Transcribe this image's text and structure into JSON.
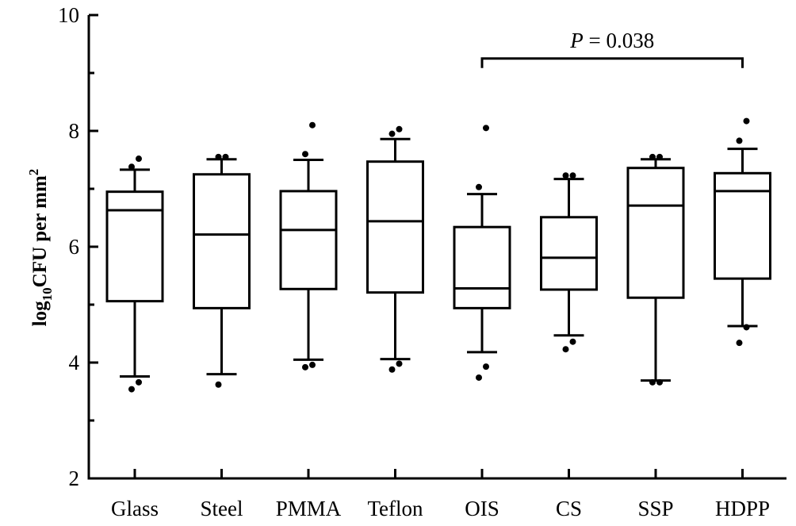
{
  "chart_data": {
    "type": "box",
    "ylabel": {
      "base": "log",
      "sub": "10",
      "main": "CFU per mm",
      "sup": "2"
    },
    "ylim": [
      2,
      10
    ],
    "yticks": [
      "2",
      "4",
      "6",
      "8",
      "10"
    ],
    "grid": false,
    "categories": [
      "Glass",
      "Steel",
      "PMMA",
      "Teflon",
      "OIS",
      "CS",
      "SSP",
      "HDPP"
    ],
    "boxes": [
      {
        "category": "Glass",
        "whisker_low": 3.76,
        "q1": 5.06,
        "median": 6.63,
        "q3": 6.95,
        "whisker_high": 7.33,
        "outliers": [
          3.54,
          3.66,
          7.38,
          7.52
        ]
      },
      {
        "category": "Steel",
        "whisker_low": 3.8,
        "q1": 4.94,
        "median": 6.21,
        "q3": 7.25,
        "whisker_high": 7.51,
        "outliers": [
          3.62,
          7.55,
          7.55
        ]
      },
      {
        "category": "PMMA",
        "whisker_low": 4.05,
        "q1": 5.27,
        "median": 6.29,
        "q3": 6.96,
        "whisker_high": 7.5,
        "outliers": [
          3.92,
          3.96,
          7.6,
          8.1
        ]
      },
      {
        "category": "Teflon",
        "whisker_low": 4.06,
        "q1": 5.21,
        "median": 6.44,
        "q3": 7.47,
        "whisker_high": 7.86,
        "outliers": [
          3.88,
          3.98,
          7.95,
          8.03
        ]
      },
      {
        "category": "OIS",
        "whisker_low": 4.18,
        "q1": 4.94,
        "median": 5.28,
        "q3": 6.34,
        "whisker_high": 6.91,
        "outliers": [
          3.74,
          3.93,
          7.03,
          8.05
        ]
      },
      {
        "category": "CS",
        "whisker_low": 4.47,
        "q1": 5.26,
        "median": 5.81,
        "q3": 6.51,
        "whisker_high": 7.17,
        "outliers": [
          4.23,
          4.36,
          7.23,
          7.23
        ]
      },
      {
        "category": "SSP",
        "whisker_low": 3.69,
        "q1": 5.12,
        "median": 6.71,
        "q3": 7.36,
        "whisker_high": 7.51,
        "outliers": [
          3.66,
          3.66,
          7.55,
          7.55
        ]
      },
      {
        "category": "HDPP",
        "whisker_low": 4.63,
        "q1": 5.45,
        "median": 6.96,
        "q3": 7.27,
        "whisker_high": 7.69,
        "outliers": [
          4.34,
          4.61,
          7.83,
          8.17
        ]
      }
    ],
    "annotations": [
      {
        "type": "significance-bracket",
        "from": "OIS",
        "to": "HDPP",
        "y": 9.25,
        "label_italic": "P",
        "label_rest": " = 0.038"
      }
    ]
  }
}
